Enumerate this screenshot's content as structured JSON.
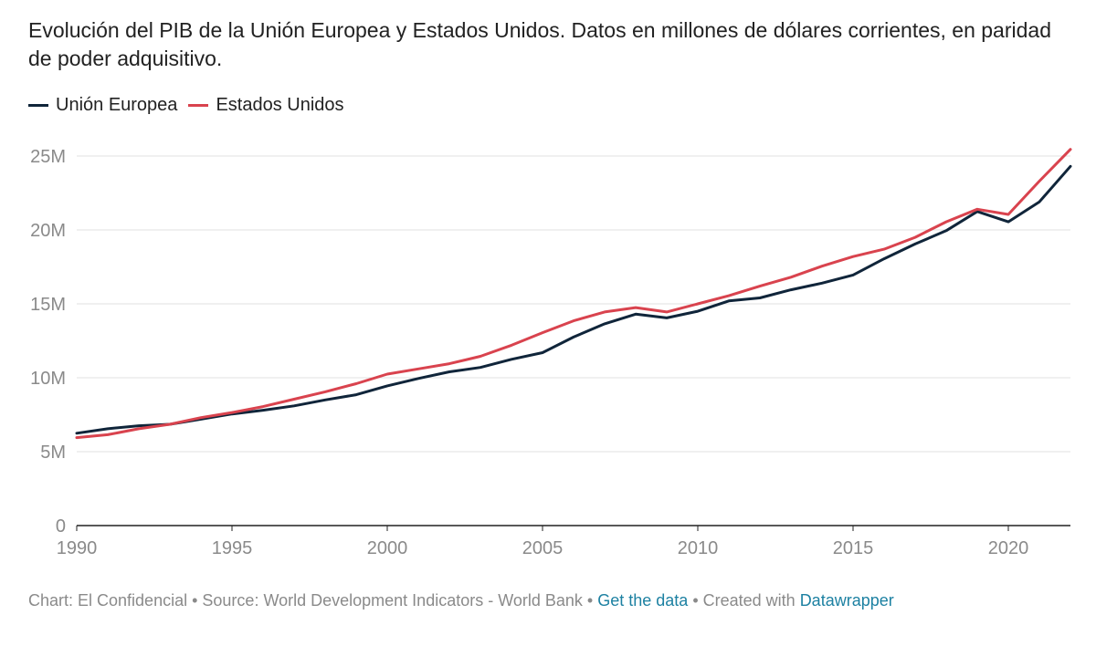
{
  "title": "Evolución del PIB de la Unión Europea y Estados Unidos. Datos en millones de dólares corrientes, en paridad de poder adquisitivo.",
  "footer": {
    "credit": "Chart: El Confidencial",
    "sep1": " • ",
    "source": "Source: World Development Indicators - World Bank",
    "sep2": " • ",
    "get_data": "Get the data",
    "sep3": " • ",
    "created_with": "Created with ",
    "datawrapper": "Datawrapper"
  },
  "chart_data": {
    "type": "line",
    "title": "Evolución del PIB de la Unión Europea y Estados Unidos. Datos en millones de dólares corrientes, en paridad de poder adquisitivo.",
    "xlabel": "",
    "ylabel": "",
    "xlim": [
      1990,
      2022
    ],
    "ylim": [
      0,
      25000000
    ],
    "x_ticks": [
      1990,
      1995,
      2000,
      2005,
      2010,
      2015,
      2020
    ],
    "x_tick_labels": [
      "1990",
      "1995",
      "2000",
      "2005",
      "2010",
      "2015",
      "2020"
    ],
    "y_ticks": [
      0,
      5000000,
      10000000,
      15000000,
      20000000,
      25000000
    ],
    "y_tick_labels": [
      "0",
      "5M",
      "10M",
      "15M",
      "20M",
      "25M"
    ],
    "grid": true,
    "legend_position": "top-left",
    "x": [
      1990,
      1991,
      1992,
      1993,
      1994,
      1995,
      1996,
      1997,
      1998,
      1999,
      2000,
      2001,
      2002,
      2003,
      2004,
      2005,
      2006,
      2007,
      2008,
      2009,
      2010,
      2011,
      2012,
      2013,
      2014,
      2015,
      2016,
      2017,
      2018,
      2019,
      2020,
      2021,
      2022
    ],
    "series": [
      {
        "name": "Unión Europea",
        "color": "#10253a",
        "values": [
          6250000,
          6550000,
          6750000,
          6850000,
          7200000,
          7550000,
          7800000,
          8100000,
          8500000,
          8850000,
          9450000,
          9950000,
          10400000,
          10700000,
          11250000,
          11700000,
          12750000,
          13650000,
          14300000,
          14050000,
          14500000,
          15200000,
          15400000,
          15950000,
          16400000,
          16950000,
          18050000,
          19050000,
          19950000,
          21250000,
          20550000,
          21900000,
          24300000
        ]
      },
      {
        "name": "Estados Unidos",
        "color": "#d9434e",
        "values": [
          5950000,
          6150000,
          6550000,
          6850000,
          7300000,
          7650000,
          8050000,
          8550000,
          9050000,
          9600000,
          10250000,
          10600000,
          10950000,
          11450000,
          12200000,
          13050000,
          13850000,
          14450000,
          14750000,
          14450000,
          15000000,
          15550000,
          16200000,
          16800000,
          17550000,
          18200000,
          18700000,
          19500000,
          20550000,
          21400000,
          21050000,
          23300000,
          25450000
        ]
      }
    ]
  }
}
